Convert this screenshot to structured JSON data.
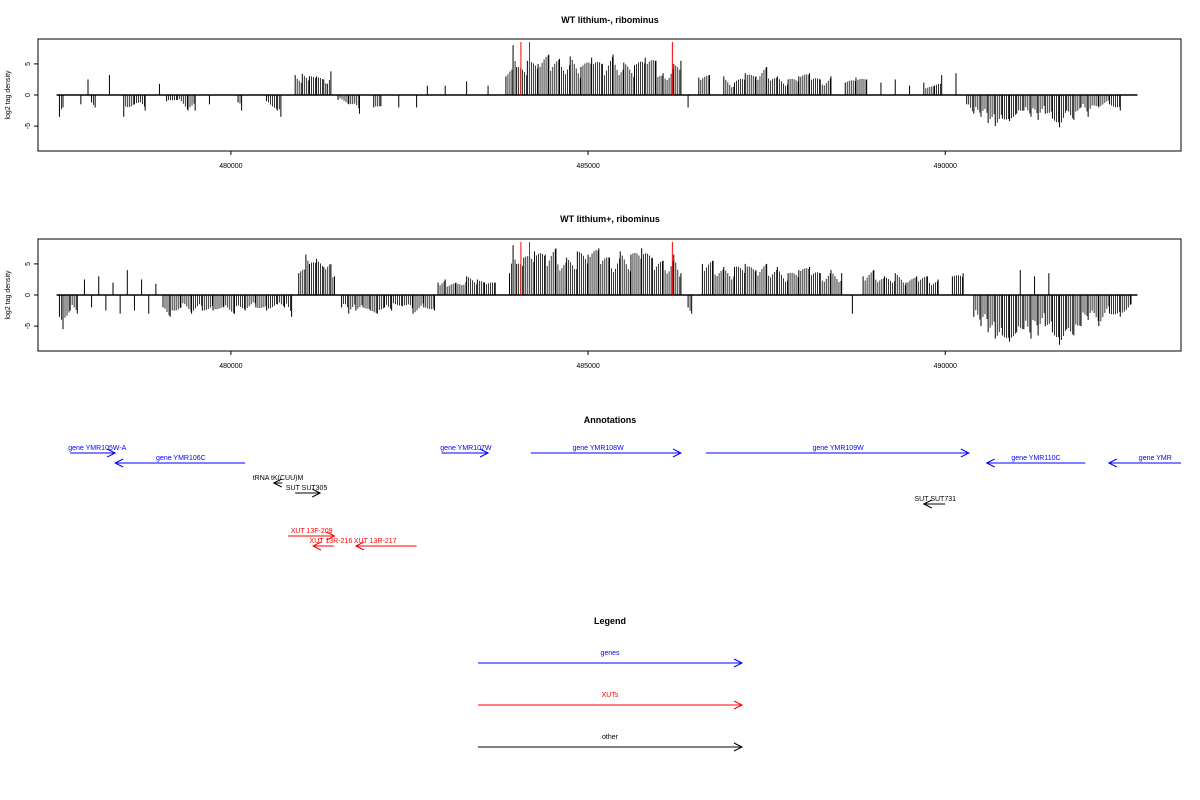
{
  "colors": {
    "genes": "#0000ff",
    "xuts": "#ff0000",
    "other": "#000000",
    "marker": "#ff0000"
  },
  "chart_data": [
    {
      "type": "bar",
      "title": "WT lithium-, ribominus",
      "ylabel": "log2 tag density",
      "xlim": [
        477300,
        493300
      ],
      "ylim": [
        -9,
        9
      ],
      "xticks": [
        480000,
        485000,
        490000
      ],
      "xtick_labels": [
        "480000",
        "485000",
        "490000"
      ],
      "yticks": [
        -5,
        0,
        5
      ],
      "ytick_labels": [
        "-5",
        "0",
        "5"
      ],
      "baseline": [
        477560,
        492690
      ],
      "markers": [
        484060,
        484180,
        486180
      ],
      "bars": [
        [
          477600,
          -3.5
        ],
        [
          477650,
          -2.0
        ],
        [
          477900,
          -1.5
        ],
        [
          478000,
          2.5
        ],
        [
          478050,
          -1.2
        ],
        [
          478100,
          -2.0
        ],
        [
          478300,
          3.2
        ],
        [
          478500,
          -3.5
        ],
        [
          478650,
          -1.5
        ],
        [
          478800,
          -2.5
        ],
        [
          479000,
          1.8
        ],
        [
          479100,
          -1.0
        ],
        [
          479250,
          -0.8
        ],
        [
          479400,
          -2.5
        ],
        [
          479500,
          -2.5
        ],
        [
          479700,
          -1.5
        ],
        [
          480100,
          -1.2
        ],
        [
          480150,
          -2.5
        ],
        [
          480500,
          -1.0
        ],
        [
          480650,
          -2.5
        ],
        [
          480700,
          -3.5
        ],
        [
          480900,
          3.2
        ],
        [
          481000,
          3.4
        ],
        [
          481100,
          3.0
        ],
        [
          481200,
          3.0
        ],
        [
          481300,
          2.5
        ],
        [
          481350,
          1.8
        ],
        [
          481400,
          3.8
        ],
        [
          481500,
          -0.8
        ],
        [
          481650,
          -1.5
        ],
        [
          481800,
          -3.0
        ],
        [
          482000,
          -2.0
        ],
        [
          482100,
          -1.8
        ],
        [
          482350,
          -2.0
        ],
        [
          482600,
          -2.0
        ],
        [
          482750,
          1.5
        ],
        [
          483000,
          1.5
        ],
        [
          483300,
          2.2
        ],
        [
          483600,
          1.5
        ],
        [
          483850,
          3.0
        ],
        [
          483950,
          8.0
        ],
        [
          484000,
          4.5
        ],
        [
          484150,
          5.5
        ],
        [
          484300,
          5.0
        ],
        [
          484450,
          6.5
        ],
        [
          484600,
          5.8
        ],
        [
          484750,
          6.2
        ],
        [
          484900,
          4.5
        ],
        [
          485050,
          6.0
        ],
        [
          485200,
          5.0
        ],
        [
          485350,
          6.5
        ],
        [
          485500,
          5.2
        ],
        [
          485650,
          4.8
        ],
        [
          485800,
          6.0
        ],
        [
          485950,
          5.5
        ],
        [
          486050,
          3.5
        ],
        [
          486200,
          5.0
        ],
        [
          486300,
          5.5
        ],
        [
          486400,
          -2.0
        ],
        [
          486550,
          2.8
        ],
        [
          486700,
          3.2
        ],
        [
          486900,
          3.0
        ],
        [
          487050,
          2.0
        ],
        [
          487200,
          3.5
        ],
        [
          487350,
          3.0
        ],
        [
          487500,
          4.5
        ],
        [
          487650,
          3.0
        ],
        [
          487800,
          2.5
        ],
        [
          487950,
          3.0
        ],
        [
          488100,
          3.5
        ],
        [
          488250,
          2.5
        ],
        [
          488400,
          3.0
        ],
        [
          488600,
          2.0
        ],
        [
          488750,
          2.8
        ],
        [
          488900,
          2.5
        ],
        [
          489100,
          2.0
        ],
        [
          489300,
          2.5
        ],
        [
          489500,
          1.5
        ],
        [
          489700,
          2.0
        ],
        [
          489850,
          1.5
        ],
        [
          489950,
          3.2
        ],
        [
          490150,
          3.5
        ],
        [
          490300,
          -1.5
        ],
        [
          490400,
          -3.0
        ],
        [
          490500,
          -3.5
        ],
        [
          490600,
          -4.5
        ],
        [
          490700,
          -5.0
        ],
        [
          490800,
          -3.8
        ],
        [
          490900,
          -4.2
        ],
        [
          491000,
          -3.0
        ],
        [
          491100,
          -2.5
        ],
        [
          491200,
          -3.5
        ],
        [
          491300,
          -4.0
        ],
        [
          491400,
          -3.0
        ],
        [
          491500,
          -3.8
        ],
        [
          491600,
          -5.2
        ],
        [
          491700,
          -2.5
        ],
        [
          491800,
          -4.0
        ],
        [
          491900,
          -2.0
        ],
        [
          492000,
          -3.5
        ],
        [
          492150,
          -2.0
        ],
        [
          492300,
          -1.5
        ],
        [
          492450,
          -2.5
        ]
      ]
    },
    {
      "type": "bar",
      "title": "WT lithium+, ribominus",
      "ylabel": "log2 tag density",
      "xlim": [
        477300,
        493300
      ],
      "ylim": [
        -9,
        9
      ],
      "xticks": [
        480000,
        485000,
        490000
      ],
      "xtick_labels": [
        "480000",
        "485000",
        "490000"
      ],
      "yticks": [
        -5,
        0,
        5
      ],
      "ytick_labels": [
        "-5",
        "0",
        "5"
      ],
      "baseline": [
        477560,
        492690
      ],
      "markers": [
        484060,
        484180,
        486180
      ],
      "bars": [
        [
          477600,
          -3.5
        ],
        [
          477650,
          -5.5
        ],
        [
          477750,
          -2.5
        ],
        [
          477850,
          -3.0
        ],
        [
          477950,
          2.5
        ],
        [
          478050,
          -2.0
        ],
        [
          478150,
          3.0
        ],
        [
          478250,
          -2.5
        ],
        [
          478350,
          2.0
        ],
        [
          478450,
          -3.0
        ],
        [
          478550,
          4.0
        ],
        [
          478650,
          -2.5
        ],
        [
          478750,
          2.5
        ],
        [
          478850,
          -3.0
        ],
        [
          478950,
          1.8
        ],
        [
          479050,
          -2.0
        ],
        [
          479150,
          -3.5
        ],
        [
          479300,
          -2.0
        ],
        [
          479450,
          -3.0
        ],
        [
          479600,
          -2.5
        ],
        [
          479750,
          -2.5
        ],
        [
          479900,
          -2.0
        ],
        [
          480050,
          -3.0
        ],
        [
          480200,
          -2.5
        ],
        [
          480350,
          -2.0
        ],
        [
          480500,
          -2.5
        ],
        [
          480650,
          -1.5
        ],
        [
          480750,
          -2.0
        ],
        [
          480850,
          -3.5
        ],
        [
          480950,
          3.5
        ],
        [
          481050,
          6.5
        ],
        [
          481100,
          5.0
        ],
        [
          481200,
          5.8
        ],
        [
          481300,
          4.5
        ],
        [
          481400,
          5.0
        ],
        [
          481450,
          3.0
        ],
        [
          481550,
          -2.0
        ],
        [
          481650,
          -3.0
        ],
        [
          481750,
          -2.5
        ],
        [
          481850,
          -2.0
        ],
        [
          481950,
          -2.5
        ],
        [
          482050,
          -3.0
        ],
        [
          482150,
          -2.0
        ],
        [
          482250,
          -2.5
        ],
        [
          482400,
          -1.8
        ],
        [
          482550,
          -3.0
        ],
        [
          482700,
          -2.0
        ],
        [
          482850,
          -2.5
        ],
        [
          482900,
          2.0
        ],
        [
          483000,
          2.5
        ],
        [
          483150,
          2.0
        ],
        [
          483300,
          3.0
        ],
        [
          483450,
          2.5
        ],
        [
          483550,
          2.0
        ],
        [
          483700,
          2.0
        ],
        [
          483900,
          3.5
        ],
        [
          483950,
          8.0
        ],
        [
          484000,
          5.0
        ],
        [
          484100,
          6.0
        ],
        [
          484250,
          7.0
        ],
        [
          484400,
          6.5
        ],
        [
          484550,
          7.5
        ],
        [
          484700,
          6.0
        ],
        [
          484850,
          7.0
        ],
        [
          485000,
          6.5
        ],
        [
          485150,
          7.5
        ],
        [
          485300,
          6.0
        ],
        [
          485450,
          7.0
        ],
        [
          485600,
          6.5
        ],
        [
          485750,
          7.5
        ],
        [
          485900,
          6.0
        ],
        [
          486050,
          5.5
        ],
        [
          486200,
          6.5
        ],
        [
          486300,
          3.5
        ],
        [
          486400,
          -2.0
        ],
        [
          486450,
          -3.0
        ],
        [
          486600,
          5.0
        ],
        [
          486750,
          5.5
        ],
        [
          486900,
          4.5
        ],
        [
          487050,
          4.5
        ],
        [
          487200,
          5.0
        ],
        [
          487350,
          4.0
        ],
        [
          487500,
          5.0
        ],
        [
          487650,
          4.5
        ],
        [
          487800,
          3.5
        ],
        [
          487950,
          4.0
        ],
        [
          488100,
          4.5
        ],
        [
          488250,
          3.5
        ],
        [
          488400,
          4.0
        ],
        [
          488550,
          3.5
        ],
        [
          488700,
          -3.0
        ],
        [
          488850,
          3.0
        ],
        [
          489000,
          4.0
        ],
        [
          489150,
          3.0
        ],
        [
          489300,
          3.5
        ],
        [
          489450,
          2.0
        ],
        [
          489600,
          3.0
        ],
        [
          489750,
          3.0
        ],
        [
          489900,
          2.5
        ],
        [
          490100,
          3.0
        ],
        [
          490250,
          3.5
        ],
        [
          490400,
          -3.5
        ],
        [
          490500,
          -5.0
        ],
        [
          490600,
          -6.0
        ],
        [
          490700,
          -7.0
        ],
        [
          490800,
          -6.5
        ],
        [
          490900,
          -7.5
        ],
        [
          491000,
          -6.0
        ],
        [
          491100,
          -5.5
        ],
        [
          491200,
          -7.0
        ],
        [
          491300,
          -6.5
        ],
        [
          491400,
          -5.0
        ],
        [
          491500,
          -6.0
        ],
        [
          491600,
          -8.0
        ],
        [
          491700,
          -5.5
        ],
        [
          491800,
          -6.5
        ],
        [
          491900,
          -5.0
        ],
        [
          492000,
          -4.0
        ],
        [
          492150,
          -5.0
        ],
        [
          492300,
          -3.0
        ],
        [
          492450,
          -3.5
        ],
        [
          492600,
          -1.5
        ],
        [
          491050,
          4.0
        ],
        [
          491250,
          3.0
        ],
        [
          491450,
          3.5
        ]
      ]
    }
  ],
  "annotations": {
    "title": "Annotations",
    "features": [
      {
        "label": "gene YMR105W-A",
        "class": "genes",
        "dir": 1,
        "start": 477750,
        "end": 478380,
        "row": 0,
        "label_pos": 478130
      },
      {
        "label": "gene YMR106C",
        "class": "genes",
        "dir": -1,
        "start": 478380,
        "end": 480200,
        "row": 1,
        "label_pos": 479300
      },
      {
        "label": "tRNA tK(CUU)M",
        "class": "other",
        "dir": -1,
        "start": 480600,
        "end": 480720,
        "row": 3,
        "label_pos": 480660
      },
      {
        "label": "SUT SUT305",
        "class": "other",
        "dir": 1,
        "start": 480900,
        "end": 481250,
        "row": 4,
        "label_pos": 481060
      },
      {
        "label": "gene YMR107W",
        "class": "genes",
        "dir": 1,
        "start": 482950,
        "end": 483600,
        "row": 0,
        "label_pos": 483290
      },
      {
        "label": "gene YMR108W",
        "class": "genes",
        "dir": 1,
        "start": 484200,
        "end": 486300,
        "row": 0,
        "label_pos": 485140
      },
      {
        "label": "gene YMR109W",
        "class": "genes",
        "dir": 1,
        "start": 486650,
        "end": 490330,
        "row": 0,
        "label_pos": 488500
      },
      {
        "label": "gene YMR110C",
        "class": "genes",
        "dir": -1,
        "start": 490580,
        "end": 491960,
        "row": 1,
        "label_pos": 491270
      },
      {
        "label": "gene YMR",
        "class": "genes",
        "dir": -1,
        "start": 492290,
        "end": 493300,
        "row": 1,
        "label_pos": 492940
      },
      {
        "label": "SUT SUT731",
        "class": "other",
        "dir": -1,
        "start": 489700,
        "end": 490000,
        "row": 5,
        "label_pos": 489860
      },
      {
        "label": "XUT 13F-209",
        "class": "xuts",
        "dir": 1,
        "start": 480800,
        "end": 481450,
        "row": 7,
        "label_pos": 481130
      },
      {
        "label": "XUT 13R-216",
        "class": "xuts",
        "dir": -1,
        "start": 481150,
        "end": 481440,
        "row": 8,
        "label_pos": 481400
      },
      {
        "label": "XUT 13R-217",
        "class": "xuts",
        "dir": -1,
        "start": 481750,
        "end": 482600,
        "row": 8,
        "label_pos": 482020
      }
    ]
  },
  "legend": {
    "title": "Legend",
    "items": [
      {
        "label": "genes",
        "class": "genes"
      },
      {
        "label": "XUTs",
        "class": "xuts"
      },
      {
        "label": "other",
        "class": "other"
      }
    ]
  }
}
